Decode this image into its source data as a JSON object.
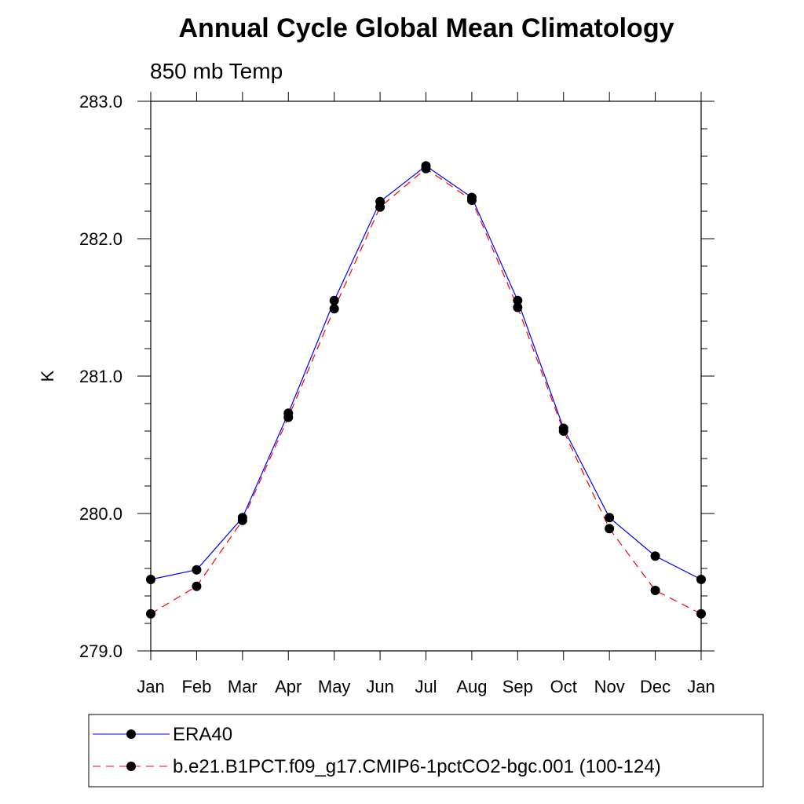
{
  "chart_data": {
    "type": "line",
    "title": "Annual Cycle Global Mean Climatology",
    "subtitle": "850 mb Temp",
    "xlabel": "",
    "ylabel": "K",
    "categories": [
      "Jan",
      "Feb",
      "Mar",
      "Apr",
      "May",
      "Jun",
      "Jul",
      "Aug",
      "Sep",
      "Oct",
      "Nov",
      "Dec",
      "Jan"
    ],
    "ylim": [
      279.0,
      283.0
    ],
    "yticks": [
      "279.0",
      "280.0",
      "281.0",
      "282.0",
      "283.0"
    ],
    "y_minor_step": 0.2,
    "grid": false,
    "legend_position": "bottom",
    "series": [
      {
        "name": "ERA40",
        "color": "#0000ff",
        "line_style": "solid",
        "marker": "filled-circle",
        "values": [
          279.52,
          279.59,
          279.97,
          280.73,
          281.55,
          282.27,
          282.53,
          282.3,
          281.55,
          280.62,
          279.97,
          279.69,
          279.52
        ]
      },
      {
        "name": "b.e21.B1PCT.f09_g17.CMIP6-1pctCO2-bgc.001 (100-124)",
        "color": "#ff0000",
        "line_style": "dashed",
        "marker": "filled-circle",
        "values": [
          279.27,
          279.47,
          279.95,
          280.7,
          281.49,
          282.23,
          282.51,
          282.28,
          281.5,
          280.6,
          279.89,
          279.44,
          279.27
        ]
      }
    ]
  }
}
